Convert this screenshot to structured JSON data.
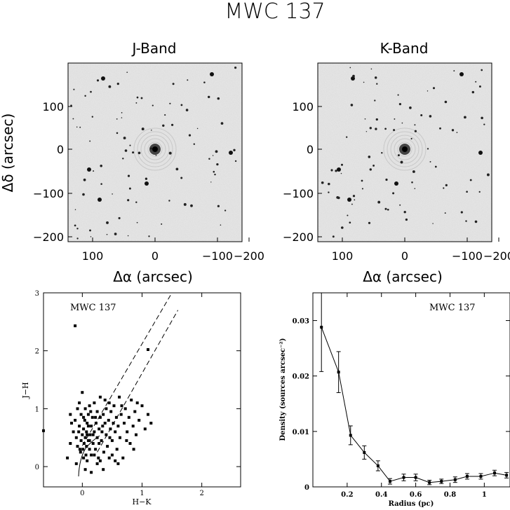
{
  "title": "MWC 137",
  "panels": {
    "jband": {
      "title": "J-Band"
    },
    "kband": {
      "title": "K-Band"
    }
  },
  "image_axes": {
    "xlabel": "Δα (arcsec)",
    "ylabel": "Δδ (arcsec)",
    "x_ticks": [
      "100",
      "0",
      "−100",
      "−200"
    ],
    "y_ticks": [
      "100",
      "0",
      "−100",
      "−200"
    ]
  },
  "chart_data": [
    {
      "type": "scatter",
      "label": "MWC 137",
      "xlabel": "H−K",
      "ylabel": "J−H",
      "xlim": [
        -0.65,
        2.65
      ],
      "ylim": [
        -0.35,
        3.0
      ],
      "x_ticks": [
        "0",
        "1",
        "2"
      ],
      "y_ticks": [
        "0",
        "1",
        "2",
        "3"
      ],
      "reddening_lines": [
        {
          "x": [
            0.0,
            1.5
          ],
          "y": [
            0.36,
            3.0
          ]
        },
        {
          "x": [
            0.25,
            1.6
          ],
          "y": [
            0.25,
            2.7
          ]
        }
      ],
      "points": [
        [
          -0.65,
          0.62
        ],
        [
          -0.12,
          2.43
        ],
        [
          1.1,
          2.02
        ],
        [
          -0.2,
          0.9
        ],
        [
          -0.18,
          0.75
        ],
        [
          -0.15,
          0.6
        ],
        [
          -0.12,
          0.8
        ],
        [
          -0.1,
          0.5
        ],
        [
          -0.08,
          1.0
        ],
        [
          -0.08,
          0.35
        ],
        [
          -0.05,
          0.7
        ],
        [
          -0.05,
          1.1
        ],
        [
          -0.03,
          0.25
        ],
        [
          -0.02,
          0.45
        ],
        [
          -0.02,
          0.9
        ],
        [
          0.0,
          0.55
        ],
        [
          0.0,
          1.28
        ],
        [
          0.01,
          0.3
        ],
        [
          0.02,
          0.65
        ],
        [
          0.02,
          0.15
        ],
        [
          0.03,
          0.4
        ],
        [
          0.04,
          0.8
        ],
        [
          0.05,
          0.5
        ],
        [
          0.05,
          1.0
        ],
        [
          0.06,
          0.2
        ],
        [
          0.07,
          0.35
        ],
        [
          0.07,
          0.6
        ],
        [
          0.08,
          0.75
        ],
        [
          0.08,
          0.1
        ],
        [
          0.1,
          0.45
        ],
        [
          0.1,
          0.9
        ],
        [
          0.12,
          0.3
        ],
        [
          0.12,
          1.05
        ],
        [
          0.13,
          0.55
        ],
        [
          0.15,
          0.7
        ],
        [
          0.15,
          0.2
        ],
        [
          0.17,
          0.85
        ],
        [
          0.18,
          0.4
        ],
        [
          0.2,
          1.1
        ],
        [
          0.2,
          0.6
        ],
        [
          0.22,
          0.3
        ],
        [
          0.23,
          0.75
        ],
        [
          0.25,
          0.95
        ],
        [
          0.25,
          0.5
        ],
        [
          0.27,
          0.15
        ],
        [
          0.28,
          0.65
        ],
        [
          0.3,
          0.85
        ],
        [
          0.3,
          1.2
        ],
        [
          0.32,
          0.45
        ],
        [
          0.33,
          0.6
        ],
        [
          0.35,
          0.9
        ],
        [
          0.36,
          0.25
        ],
        [
          0.38,
          0.75
        ],
        [
          0.4,
          1.0
        ],
        [
          0.4,
          0.55
        ],
        [
          0.42,
          0.35
        ],
        [
          0.44,
          0.8
        ],
        [
          0.45,
          1.1
        ],
        [
          0.47,
          0.65
        ],
        [
          0.48,
          0.95
        ],
        [
          0.5,
          0.45
        ],
        [
          0.52,
          0.75
        ],
        [
          0.53,
          1.05
        ],
        [
          0.55,
          0.6
        ],
        [
          0.57,
          0.85
        ],
        [
          0.58,
          0.3
        ],
        [
          0.6,
          0.7
        ],
        [
          0.62,
          1.2
        ],
        [
          0.63,
          0.5
        ],
        [
          0.65,
          0.9
        ],
        [
          0.68,
          0.15
        ],
        [
          0.7,
          0.75
        ],
        [
          0.72,
          1.0
        ],
        [
          0.75,
          0.6
        ],
        [
          0.78,
          0.85
        ],
        [
          0.8,
          0.4
        ],
        [
          0.82,
          1.15
        ],
        [
          0.85,
          0.7
        ],
        [
          0.88,
          0.95
        ],
        [
          0.9,
          0.55
        ],
        [
          0.95,
          0.8
        ],
        [
          1.0,
          1.05
        ],
        [
          1.05,
          0.65
        ],
        [
          1.1,
          0.9
        ],
        [
          1.15,
          0.75
        ],
        [
          0.5,
          0.2
        ],
        [
          0.55,
          0.1
        ],
        [
          0.35,
          -0.05
        ],
        [
          0.15,
          -0.1
        ],
        [
          0.05,
          -0.05
        ],
        [
          -0.1,
          0.05
        ],
        [
          -0.25,
          0.15
        ],
        [
          -0.2,
          0.4
        ],
        [
          0.45,
          0.15
        ],
        [
          0.25,
          0.05
        ],
        [
          0.6,
          0.05
        ],
        [
          -0.06,
          0.6
        ],
        [
          0.18,
          0.55
        ],
        [
          0.28,
          0.4
        ],
        [
          0.14,
          0.95
        ],
        [
          0.38,
          1.15
        ],
        [
          0.66,
          1.05
        ],
        [
          0.74,
          0.45
        ],
        [
          0.92,
          1.1
        ],
        [
          0.86,
          0.3
        ],
        [
          0.1,
          0.7
        ],
        [
          0.22,
          0.85
        ],
        [
          0.34,
          0.7
        ],
        [
          0.46,
          0.5
        ],
        [
          0.02,
          0.85
        ],
        [
          -0.04,
          0.3
        ],
        [
          0.08,
          0.55
        ],
        [
          0.2,
          0.2
        ],
        [
          0.3,
          0.1
        ],
        [
          0.12,
          0.45
        ]
      ]
    },
    {
      "type": "line",
      "label": "MWC 137",
      "xlabel": "Radius (pc)",
      "ylabel": "Density (sources arcsec⁻²)",
      "xlim": [
        0.0,
        1.15
      ],
      "ylim": [
        0.0,
        0.035
      ],
      "x_ticks": [
        "0.2",
        "0.4",
        "0.6",
        "0.8",
        "1"
      ],
      "y_ticks": [
        "0",
        "0.01",
        "0.02",
        "0.03"
      ],
      "x": [
        0.05,
        0.15,
        0.22,
        0.3,
        0.38,
        0.45,
        0.53,
        0.6,
        0.68,
        0.75,
        0.83,
        0.9,
        0.98,
        1.06,
        1.13
      ],
      "y": [
        0.0288,
        0.0207,
        0.0093,
        0.0062,
        0.0038,
        0.001,
        0.0017,
        0.0017,
        0.0008,
        0.001,
        0.0013,
        0.0019,
        0.0019,
        0.0025,
        0.0021
      ],
      "yerr": [
        0.008,
        0.0037,
        0.0017,
        0.0012,
        0.0009,
        0.0005,
        0.0006,
        0.0006,
        0.0004,
        0.0004,
        0.0005,
        0.0005,
        0.0005,
        0.0005,
        0.0005
      ]
    }
  ]
}
